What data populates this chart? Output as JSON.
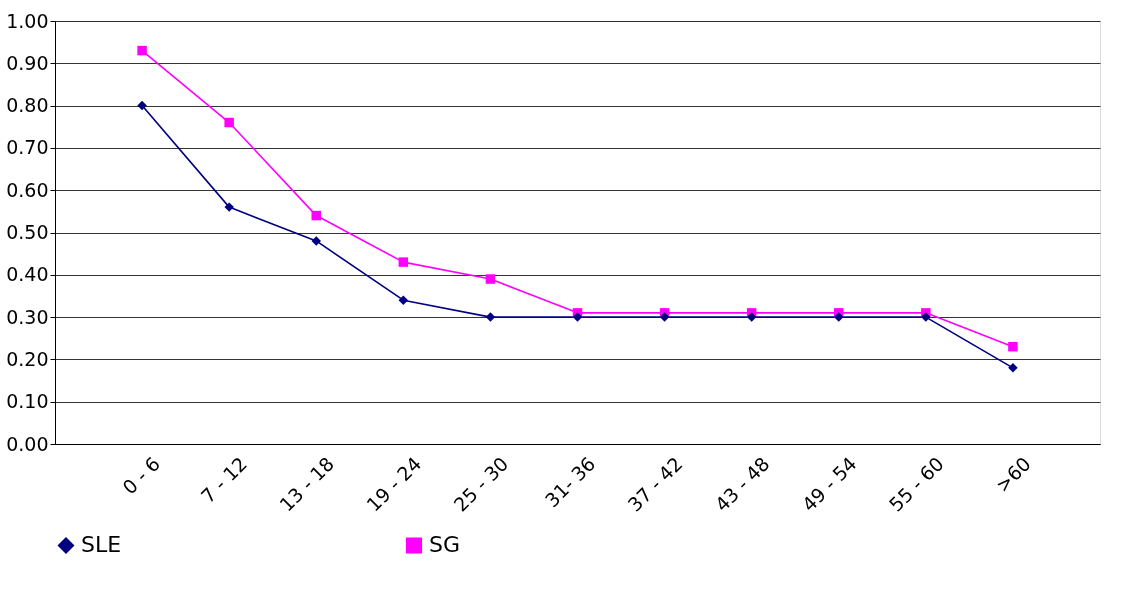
{
  "chart_data": {
    "type": "line",
    "categories": [
      "0 - 6",
      "7 - 12",
      "13 - 18",
      "19 - 24",
      "25 - 30",
      "31- 36",
      "37 - 42",
      "43 - 48",
      "49 - 54",
      "55 - 60",
      ">60"
    ],
    "series": [
      {
        "name": "SLE",
        "color": "#000080",
        "marker": "diamond",
        "values": [
          0.8,
          0.56,
          0.48,
          0.34,
          0.3,
          0.3,
          0.3,
          0.3,
          0.3,
          0.3,
          0.18
        ]
      },
      {
        "name": "SG",
        "color": "#ff00ff",
        "marker": "square",
        "values": [
          0.93,
          0.76,
          0.54,
          0.43,
          0.39,
          0.31,
          0.31,
          0.31,
          0.31,
          0.31,
          0.23
        ]
      }
    ],
    "ylim": [
      0,
      1
    ],
    "yticks": [
      {
        "value": 0,
        "label": "0.00"
      },
      {
        "value": 0.1,
        "label": "0.10"
      },
      {
        "value": 0.2,
        "label": "0.20"
      },
      {
        "value": 0.3,
        "label": "0.30"
      },
      {
        "value": 0.4,
        "label": "0.40"
      },
      {
        "value": 0.5,
        "label": "0.50"
      },
      {
        "value": 0.6,
        "label": "0.60"
      },
      {
        "value": 0.7,
        "label": "0.70"
      },
      {
        "value": 0.8,
        "label": "0.80"
      },
      {
        "value": 0.9,
        "label": "0.90"
      },
      {
        "value": 1,
        "label": "1.00"
      }
    ],
    "grid": "y",
    "legend": "bottom",
    "line_style": "solid"
  }
}
